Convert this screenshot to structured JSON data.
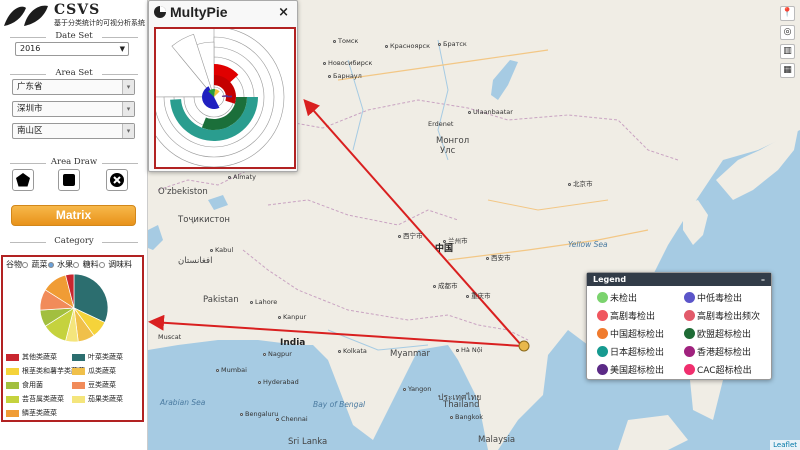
{
  "brand": {
    "title": "CSVS",
    "subtitle": "基于分类统计的可视分析系统"
  },
  "date_set": {
    "title": "Date Set",
    "year": "2016"
  },
  "area_set": {
    "title": "Area Set",
    "province": "广东省",
    "city": "深圳市",
    "district": "南山区"
  },
  "area_draw": {
    "title": "Area Draw",
    "tools": [
      "pentagon-tool",
      "rectangle-tool",
      "clear-tool"
    ]
  },
  "matrix_button": "Matrix",
  "category": {
    "title": "Category",
    "tabs": [
      {
        "label": "谷物",
        "selected": false
      },
      {
        "label": "蔬菜",
        "selected": true
      },
      {
        "label": "水果",
        "selected": false
      },
      {
        "label": "糖料",
        "selected": false
      },
      {
        "label": "调味料",
        "selected": false
      }
    ],
    "legend": [
      {
        "label": "其他类蔬菜",
        "color": "#c9262f"
      },
      {
        "label": "叶菜类蔬菜",
        "color": "#2c6e6f"
      },
      {
        "label": "根茎类和薯芋类蔬菜",
        "color": "#f5d33a"
      },
      {
        "label": "瓜类蔬菜",
        "color": "#f0c04a"
      },
      {
        "label": "食用菌",
        "color": "#a2bf3f"
      },
      {
        "label": "豆类蔬菜",
        "color": "#f18b5a"
      },
      {
        "label": "芸苔属类蔬菜",
        "color": "#c5d23e"
      },
      {
        "label": "茄果类蔬菜",
        "color": "#f4e57c"
      },
      {
        "label": "鳞茎类蔬菜",
        "color": "#f09c35"
      }
    ]
  },
  "pie_data": {
    "type": "pie",
    "slices": [
      {
        "label": "叶菜类蔬菜",
        "value": 32,
        "color": "#2c6e6f"
      },
      {
        "label": "根茎类和薯芋类蔬菜",
        "value": 8,
        "color": "#f5d33a"
      },
      {
        "label": "瓜类蔬菜",
        "value": 8,
        "color": "#f0c04a"
      },
      {
        "label": "茄果类蔬菜",
        "value": 6,
        "color": "#f4e57c"
      },
      {
        "label": "芸苔属类蔬菜",
        "value": 12,
        "color": "#c5d23e"
      },
      {
        "label": "食用菌",
        "value": 8,
        "color": "#a2bf3f"
      },
      {
        "label": "豆类蔬菜",
        "value": 10,
        "color": "#f18b5a"
      },
      {
        "label": "鳞茎类蔬菜",
        "value": 12,
        "color": "#f09c35"
      },
      {
        "label": "其他类蔬菜",
        "value": 4,
        "color": "#c9262f"
      }
    ]
  },
  "multypie": {
    "title": "MultyPie",
    "close": "×",
    "rings": [
      {
        "color": "#e00000",
        "value": 0.22
      },
      {
        "color": "#2a9d8f",
        "value": 0.5
      },
      {
        "color": "#1b6f3a",
        "value": 0.3
      },
      {
        "color": "#2020c0",
        "value": 0.15
      },
      {
        "color": "#5b2a86",
        "value": 0.05
      }
    ]
  },
  "map": {
    "labels": [
      {
        "text": "Томск",
        "cls": ""
      },
      {
        "text": "Красноярск",
        "cls": ""
      },
      {
        "text": "Братск",
        "cls": ""
      },
      {
        "text": "Новосибирск",
        "cls": ""
      },
      {
        "text": "Барнаул",
        "cls": ""
      },
      {
        "text": "Ulaanbaatar",
        "cls": ""
      },
      {
        "text": "Монгол",
        "cls": "country"
      },
      {
        "text": "Улс",
        "cls": "country"
      },
      {
        "text": "Erdenet",
        "cls": ""
      },
      {
        "text": "Almaty",
        "cls": ""
      },
      {
        "text": "O'zbekiston",
        "cls": "country"
      },
      {
        "text": "Тоҷикистон",
        "cls": "country"
      },
      {
        "text": "Kabul",
        "cls": ""
      },
      {
        "text": "افغانستان",
        "cls": "country"
      },
      {
        "text": "Pakistan",
        "cls": "country"
      },
      {
        "text": "Lahore",
        "cls": ""
      },
      {
        "text": "Kanpur",
        "cls": ""
      },
      {
        "text": "India",
        "cls": "big"
      },
      {
        "text": "Nagpur",
        "cls": ""
      },
      {
        "text": "Kolkata",
        "cls": ""
      },
      {
        "text": "Mumbai",
        "cls": ""
      },
      {
        "text": "Hyderabad",
        "cls": ""
      },
      {
        "text": "Bengaluru",
        "cls": ""
      },
      {
        "text": "Chennai",
        "cls": ""
      },
      {
        "text": "Muscat",
        "cls": ""
      },
      {
        "text": "Myanmar",
        "cls": "country"
      },
      {
        "text": "Yangon",
        "cls": ""
      },
      {
        "text": "Hà Nội",
        "cls": ""
      },
      {
        "text": "中国",
        "cls": "big"
      },
      {
        "text": "成都市",
        "cls": ""
      },
      {
        "text": "重庆市",
        "cls": ""
      },
      {
        "text": "西安市",
        "cls": ""
      },
      {
        "text": "兰州市",
        "cls": ""
      },
      {
        "text": "西宁市",
        "cls": ""
      },
      {
        "text": "北京市",
        "cls": ""
      },
      {
        "text": "Yellow Sea",
        "cls": "sea"
      },
      {
        "text": "Arabian Sea",
        "cls": "sea"
      },
      {
        "text": "Bay of Bengal",
        "cls": "sea"
      },
      {
        "text": "ประเทศไทย",
        "cls": "country"
      },
      {
        "text": "Thailand",
        "cls": "country"
      },
      {
        "text": "Bangkok",
        "cls": ""
      },
      {
        "text": "Malaysia",
        "cls": "country"
      },
      {
        "text": "Sri Lanka",
        "cls": "country"
      }
    ],
    "attribution": "Leaflet"
  },
  "legend": {
    "title": "Legend",
    "minimize": "–",
    "items": [
      {
        "label": "未检出",
        "color": "#7bd36e"
      },
      {
        "label": "中低毒检出",
        "color": "#5b55c9"
      },
      {
        "label": "高剧毒检出",
        "color": "#f0565f"
      },
      {
        "label": "高剧毒检出频次",
        "color": "#e25a6a"
      },
      {
        "label": "中国超标检出",
        "color": "#f07b2e"
      },
      {
        "label": "欧盟超标检出",
        "color": "#1e6b35"
      },
      {
        "label": "日本超标检出",
        "color": "#169a90"
      },
      {
        "label": "香港超标检出",
        "color": "#a0227e"
      },
      {
        "label": "美国超标检出",
        "color": "#5b2a86"
      },
      {
        "label": "CAC超标检出",
        "color": "#f02f6e"
      }
    ]
  }
}
